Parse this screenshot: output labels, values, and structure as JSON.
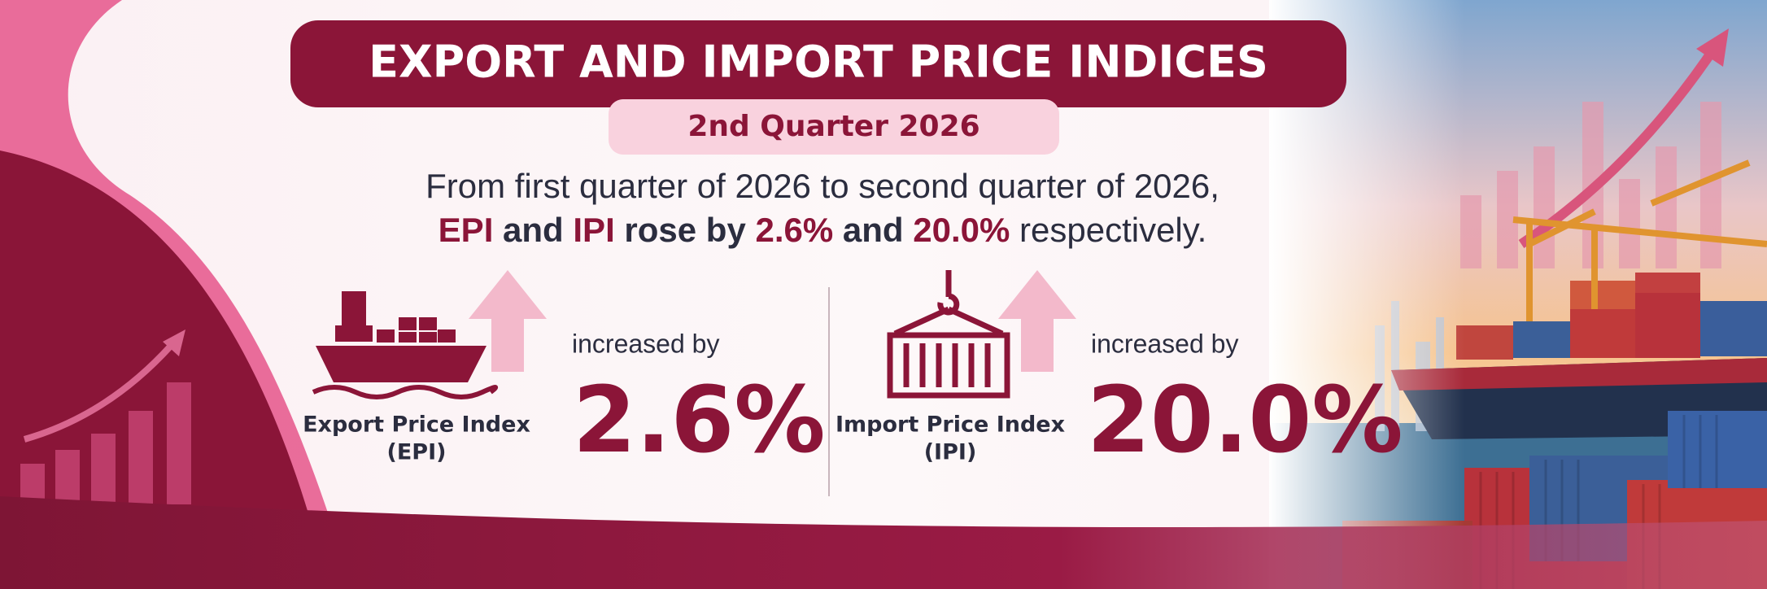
{
  "header": {
    "title": "EXPORT AND IMPORT PRICE INDICES",
    "subtitle": "2nd Quarter 2026"
  },
  "summary": {
    "line1": "From first quarter of 2026 to second quarter of 2026,",
    "line2": [
      "EPI",
      "and",
      "IPI",
      "rose by",
      "2.6%",
      "and",
      "20.0%",
      "respectively."
    ]
  },
  "indices": [
    {
      "name": "Export Price Index",
      "abbr": "(EPI)",
      "change_label": "increased by",
      "change": "2.6%"
    },
    {
      "name": "Import Price Index",
      "abbr": "(IPI)",
      "change_label": "increased by",
      "change": "20.0%"
    }
  ]
}
